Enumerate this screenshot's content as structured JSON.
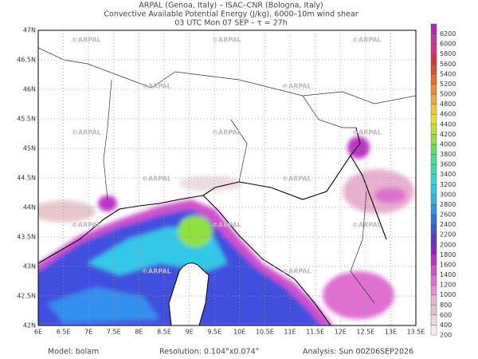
{
  "header": {
    "lines": [
      "ARPAL (Genoa, Italy)  –  ISAC–CNR (Bologna, Italy)",
      "Convective Available Potential Energy (J/kg), 6000–10m wind shear",
      "03 UTC Mon 07 SEP  –  τ = 27h"
    ]
  },
  "map": {
    "lon_labels": [
      "6E",
      "6.5E",
      "7E",
      "7.5E",
      "8E",
      "8.5E",
      "9E",
      "9.5E",
      "10E",
      "10.5E",
      "11E",
      "11.5E",
      "12E",
      "12.5E",
      "13E",
      "13.5E"
    ],
    "lat_labels": [
      "42N",
      "42.5N",
      "43N",
      "43.5N",
      "44N",
      "44.5N",
      "45N",
      "45.5N",
      "46N",
      "46.5N",
      "47N"
    ],
    "watermark": "©ARPAL"
  },
  "colorbar": {
    "levels": [
      200,
      400,
      600,
      800,
      1000,
      1200,
      1400,
      1600,
      1800,
      2000,
      2200,
      2400,
      2600,
      2800,
      3000,
      3200,
      3400,
      3600,
      3800,
      4000,
      4200,
      4400,
      4600,
      4800,
      5000,
      5200,
      5400,
      5600,
      5800,
      6000,
      6200
    ],
    "colors": [
      "#f5eef0",
      "#ecdce0",
      "#e0c4cc",
      "#e8b0d0",
      "#e890d0",
      "#e070d0",
      "#d850d0",
      "#c030c8",
      "#9020c8",
      "#6030d0",
      "#4050e0",
      "#3070e8",
      "#3090f0",
      "#30b0f0",
      "#30c8e8",
      "#30d8d0",
      "#30e0b0",
      "#40e090",
      "#60e060",
      "#90e040",
      "#c0e030",
      "#e8e030",
      "#f0c830",
      "#f0a830",
      "#f08830",
      "#f06830",
      "#e84830",
      "#e03040",
      "#e03080",
      "#d030a0",
      "#c020b0"
    ]
  },
  "footer": {
    "model": "Model: bolam",
    "resolution": "Resolution: 0.104°x0.074°",
    "analysis": "Analysis: Sun 00Z06SEP2026"
  }
}
